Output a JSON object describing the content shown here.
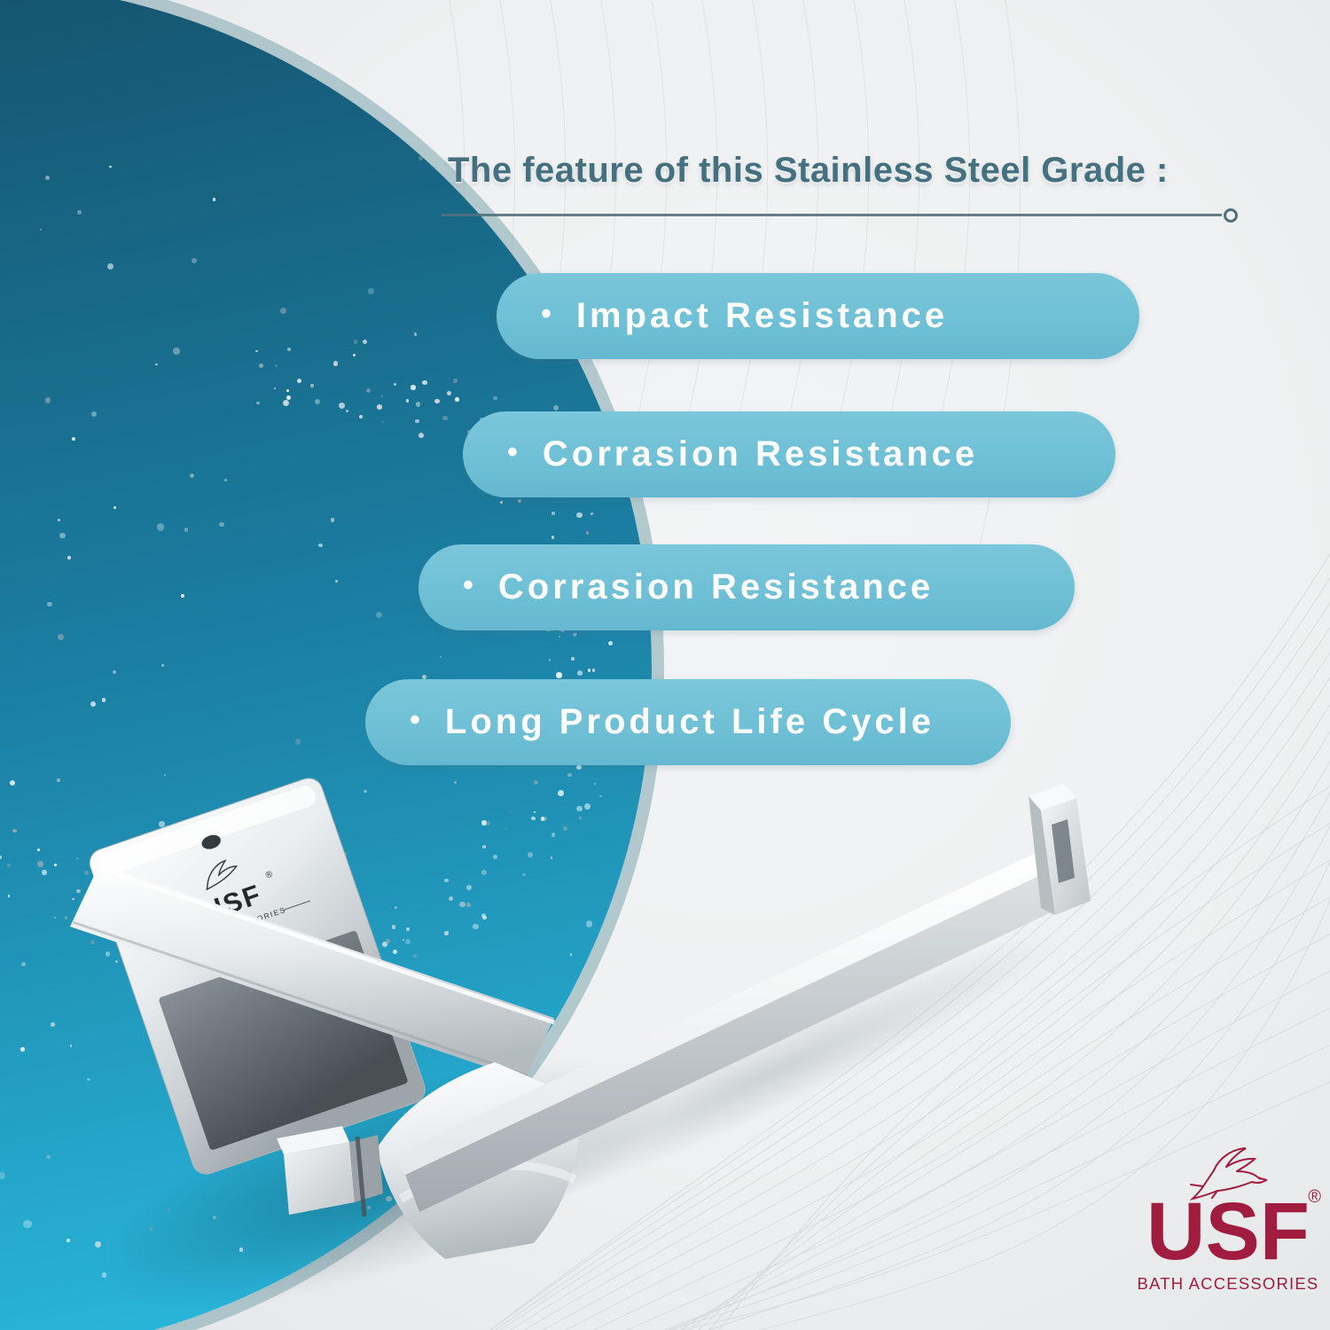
{
  "header": {
    "title": "The feature of this Stainless Steel Grade :"
  },
  "features": [
    {
      "bullet": "•",
      "label": "Impact Resistance"
    },
    {
      "bullet": "•",
      "label": "Corrasion Resistance"
    },
    {
      "bullet": "•",
      "label": "Corrasion Resistance"
    },
    {
      "bullet": "•",
      "label": "Long Product Life Cycle"
    }
  ],
  "product": {
    "plate_brand": "USF",
    "plate_registered": "®",
    "plate_subtitle": "BATH ACCESSORIES"
  },
  "brand": {
    "name": "USF",
    "registered": "®",
    "subtitle": "BATH ACCESSORIES"
  },
  "colors": {
    "page_bg": "#eef0f1",
    "circle_top": "#15506a",
    "circle_mid": "#1b7fa3",
    "circle_bottom": "#28b4d8",
    "circle_rim": "#7fa8b0",
    "pill_bg": "#6fc0d6",
    "pill_text": "#ffffff",
    "title_text": "#45707f",
    "rule_line": "#52707c",
    "brand_red": "#a01d3f"
  }
}
